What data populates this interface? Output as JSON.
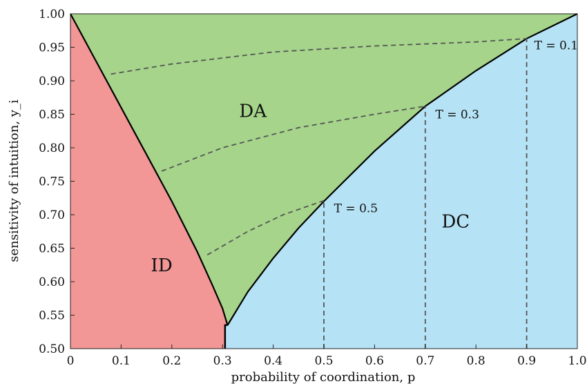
{
  "chart_data": {
    "type": "area",
    "title": "",
    "xlabel": "probability of coordination, p",
    "ylabel": "sensitivity of intuition, y_i",
    "xlim": [
      0,
      1
    ],
    "ylim": [
      0.5,
      1.0
    ],
    "xticks": [
      "0",
      "0.1",
      "0.2",
      "0.3",
      "0.4",
      "0.5",
      "0.6",
      "0.7",
      "0.8",
      "0.9",
      "1.0"
    ],
    "yticks": [
      "0.50",
      "0.55",
      "0.60",
      "0.65",
      "0.70",
      "0.75",
      "0.80",
      "0.85",
      "0.90",
      "0.95",
      "1.00"
    ],
    "grid": false,
    "colors": {
      "ID": "#f29696",
      "DA": "#a5d48a",
      "DC": "#b5e2f4",
      "boundary": "#000000",
      "dashed": "#555555"
    },
    "regions": [
      {
        "name": "ID",
        "label_at": [
          0.18,
          0.625
        ]
      },
      {
        "name": "DA",
        "label_at": [
          0.36,
          0.855
        ]
      },
      {
        "name": "DC",
        "label_at": [
          0.76,
          0.69
        ]
      }
    ],
    "boundaries": {
      "ID_DA": {
        "x": [
          0.0,
          0.05,
          0.1,
          0.15,
          0.2,
          0.25,
          0.28,
          0.3,
          0.31
        ],
        "y": [
          1.0,
          0.93,
          0.86,
          0.79,
          0.72,
          0.645,
          0.595,
          0.56,
          0.535
        ]
      },
      "DA_DC": {
        "x": [
          0.31,
          0.35,
          0.4,
          0.45,
          0.5,
          0.6,
          0.7,
          0.8,
          0.9,
          1.0
        ],
        "y": [
          0.535,
          0.585,
          0.635,
          0.68,
          0.72,
          0.795,
          0.862,
          0.915,
          0.963,
          1.0
        ]
      },
      "ID_DC": {
        "x": [
          0.305,
          0.305
        ],
        "y": [
          0.5,
          0.535
        ]
      }
    },
    "dashed_curves": [
      {
        "name": "T = 0.5",
        "x": [
          0.27,
          0.35,
          0.42,
          0.5
        ],
        "y": [
          0.64,
          0.675,
          0.7,
          0.721
        ]
      },
      {
        "name": "T = 0.3",
        "x": [
          0.18,
          0.3,
          0.45,
          0.6,
          0.7
        ],
        "y": [
          0.765,
          0.8,
          0.83,
          0.85,
          0.862
        ]
      },
      {
        "name": "T = 0.1",
        "x": [
          0.08,
          0.2,
          0.4,
          0.6,
          0.8,
          0.9
        ],
        "y": [
          0.91,
          0.925,
          0.943,
          0.952,
          0.958,
          0.963
        ]
      }
    ],
    "vertical_lines": [
      {
        "name": "T = 0.5",
        "x": 0.5,
        "y_top": 0.721
      },
      {
        "name": "T = 0.3",
        "x": 0.7,
        "y_top": 0.862
      },
      {
        "name": "T = 0.1",
        "x": 0.9,
        "y_top": 0.963
      }
    ],
    "annotations": [
      {
        "text": "T = 0.5",
        "at": [
          0.52,
          0.71
        ]
      },
      {
        "text": "T = 0.3",
        "at": [
          0.72,
          0.85
        ]
      },
      {
        "text": "T = 0.1",
        "at": [
          0.915,
          0.953
        ]
      }
    ]
  }
}
